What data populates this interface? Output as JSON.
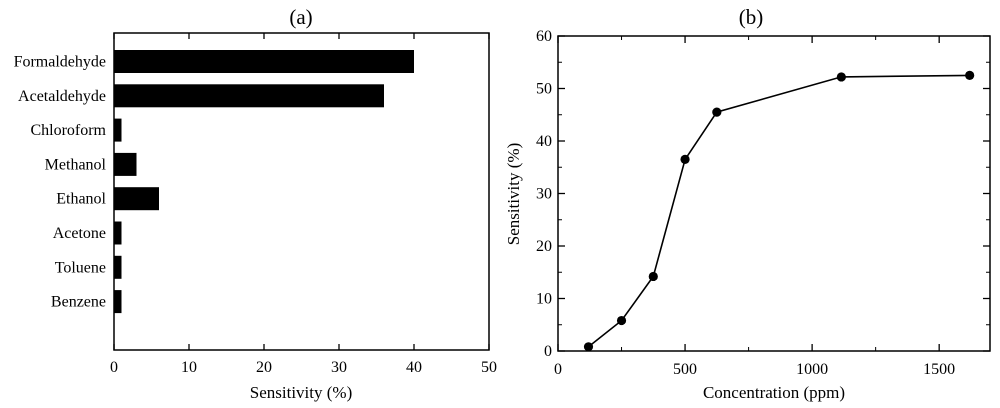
{
  "chart_data": [
    {
      "panel_label": "(a)",
      "type": "bar",
      "orientation": "horizontal",
      "categories": [
        "Formaldehyde",
        "Acetaldehyde",
        "Chloroform",
        "Methanol",
        "Ethanol",
        "Acetone",
        "Toluene",
        "Benzene"
      ],
      "values": [
        40,
        36,
        1,
        3,
        6,
        1,
        1,
        1
      ],
      "xlabel": "Sensitivity (%)",
      "ylabel": "",
      "xlim": [
        0,
        50
      ],
      "xticks": [
        0,
        10,
        20,
        30,
        40,
        50
      ],
      "bar_color": "#000000",
      "grid": false
    },
    {
      "panel_label": "(b)",
      "type": "line",
      "markers": true,
      "x": [
        120,
        250,
        375,
        500,
        625,
        1115,
        1620
      ],
      "y": [
        0.8,
        5.8,
        14.2,
        36.5,
        45.5,
        52.2,
        52.5
      ],
      "xlabel": "Concentration (ppm)",
      "ylabel": "Sensitivity (%)",
      "xlim": [
        0,
        1700
      ],
      "ylim": [
        0,
        60
      ],
      "xticks": [
        0,
        500,
        1000,
        1500
      ],
      "yticks": [
        0,
        10,
        20,
        30,
        40,
        50,
        60
      ],
      "line_color": "#000000",
      "grid": false
    }
  ]
}
